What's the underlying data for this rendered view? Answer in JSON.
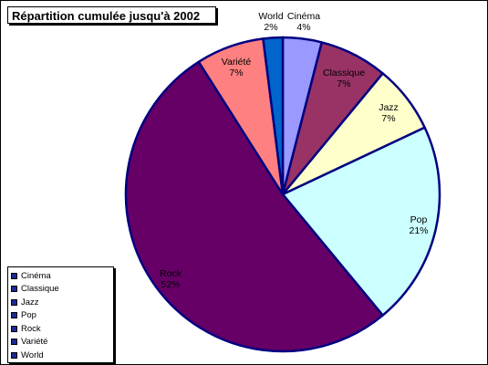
{
  "chart_data": {
    "type": "pie",
    "title": "Répartition cumulée jusqu'à 2002",
    "legend_position": "bottom-left",
    "slices": [
      {
        "name": "Cinéma",
        "percent_label": "4%",
        "value": 4,
        "color": "#9999ff"
      },
      {
        "name": "Classique",
        "percent_label": "7%",
        "value": 7,
        "color": "#993366"
      },
      {
        "name": "Jazz",
        "percent_label": "7%",
        "value": 7,
        "color": "#ffffcc"
      },
      {
        "name": "Pop",
        "percent_label": "21%",
        "value": 21,
        "color": "#ccffff"
      },
      {
        "name": "Rock",
        "percent_label": "52%",
        "value": 52,
        "color": "#660066"
      },
      {
        "name": "Variété",
        "percent_label": "7%",
        "value": 7,
        "color": "#ff8080"
      },
      {
        "name": "World",
        "percent_label": "2%",
        "value": 2,
        "color": "#0066cc"
      }
    ],
    "outline_color": "#000080",
    "legend_swatch_color": "#1a2a9a"
  }
}
